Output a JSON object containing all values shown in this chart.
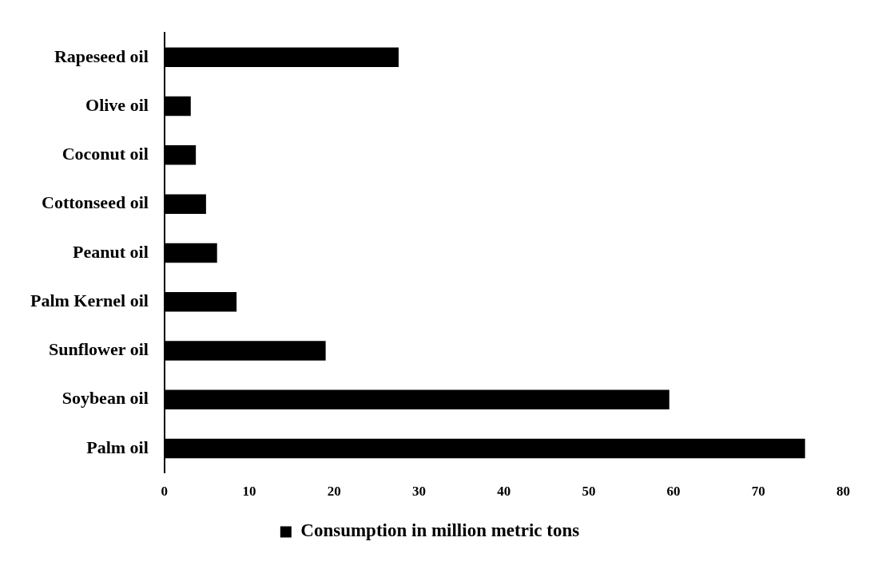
{
  "chart_data": {
    "type": "bar",
    "orientation": "horizontal",
    "categories": [
      "Rapeseed oil",
      "Olive oil",
      "Coconut oil",
      "Cottonseed oil",
      "Peanut oil",
      "Palm Kernel oil",
      "Sunflower oil",
      "Soybean oil",
      "Palm oil"
    ],
    "series": [
      {
        "name": "Consumption in million metric tons",
        "color": "#000000",
        "values": [
          27.6,
          3.1,
          3.7,
          4.9,
          6.2,
          8.5,
          19.0,
          59.5,
          75.5
        ]
      }
    ],
    "xlim": [
      0,
      80
    ],
    "xticks": [
      0,
      10,
      20,
      30,
      40,
      50,
      60,
      70,
      80
    ],
    "grid": false,
    "legend": "bottom"
  }
}
